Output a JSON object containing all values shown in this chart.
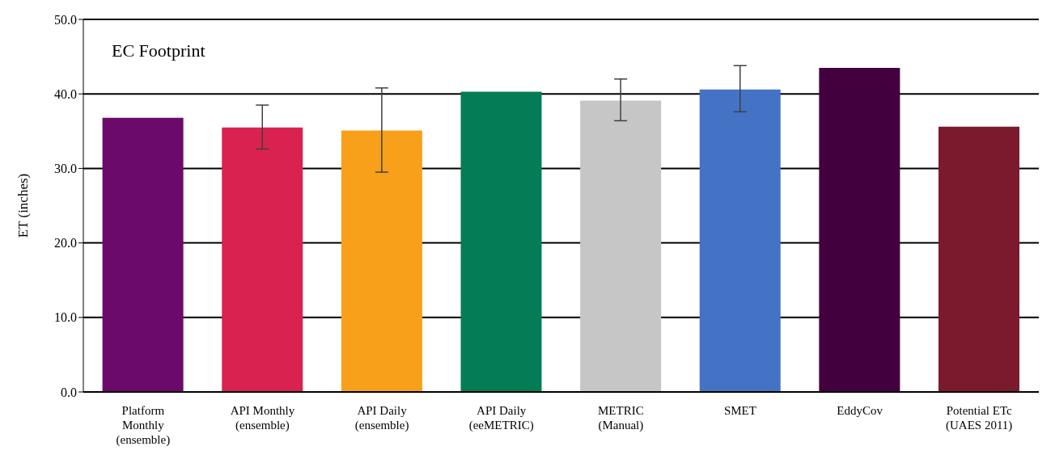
{
  "chart_data": {
    "type": "bar",
    "ylabel": "ET (inches)",
    "annotations": [
      "EC Footprint"
    ],
    "categories": [
      "Platform Monthly (ensemble)",
      "API Monthly (ensemble)",
      "API Daily (ensemble)",
      "API Daily (eeMETRIC)",
      "METRIC (Manual)",
      "SMET",
      "EddyCov",
      "Potential ETc (UAES 2011)"
    ],
    "values": [
      36.8,
      35.5,
      35.1,
      40.3,
      39.1,
      40.6,
      43.5,
      35.6
    ],
    "colors": [
      "#6b0a6b",
      "#d9224f",
      "#f9a01b",
      "#047c55",
      "#c6c6c6",
      "#4472c4",
      "#43003f",
      "#7c1a2d"
    ],
    "errors": [
      null,
      [
        32.6,
        38.5
      ],
      [
        29.5,
        40.8
      ],
      null,
      [
        36.4,
        42.0
      ],
      [
        37.6,
        43.8
      ],
      null,
      null
    ],
    "ylim": [
      0,
      50
    ],
    "yticks": [
      {
        "value": 0,
        "label": "0.0"
      },
      {
        "value": 10,
        "label": "10.0"
      },
      {
        "value": 20,
        "label": "20.0"
      },
      {
        "value": 30,
        "label": "30.0"
      },
      {
        "value": 40,
        "label": "40.0"
      },
      {
        "value": 50,
        "label": "50.0"
      }
    ],
    "grid": "y",
    "legend": false
  }
}
